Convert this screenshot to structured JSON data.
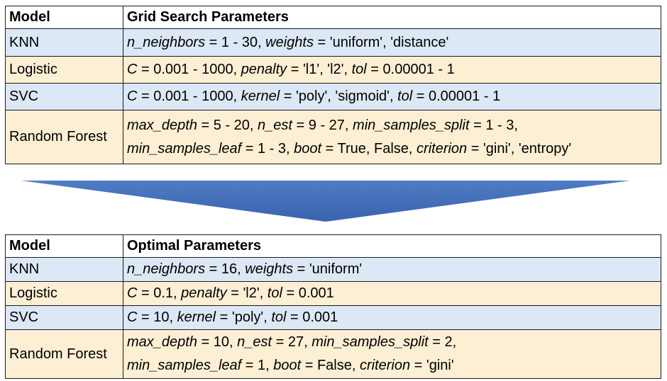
{
  "grid_table": {
    "headers": [
      "Model",
      "Grid Search Parameters"
    ],
    "rows": [
      {
        "model": "KNN",
        "lines": [
          [
            {
              "name": "n_neighbors",
              "value": " = 1 - 30, "
            },
            {
              "name": "weights",
              "value": " = 'uniform', 'distance'"
            }
          ]
        ]
      },
      {
        "model": "Logistic",
        "lines": [
          [
            {
              "name": "C",
              "value": " = 0.001 - 1000, "
            },
            {
              "name": "penalty",
              "value": " = 'l1', 'l2', "
            },
            {
              "name": "tol",
              "value": " = 0.00001 - 1"
            }
          ]
        ]
      },
      {
        "model": "SVC",
        "lines": [
          [
            {
              "name": "C",
              "value": " = 0.001 - 1000, "
            },
            {
              "name": "kernel",
              "value": " = 'poly', 'sigmoid', "
            },
            {
              "name": "tol",
              "value": " = 0.00001 - 1"
            }
          ]
        ]
      },
      {
        "model": "Random Forest",
        "lines": [
          [
            {
              "name": "max_depth",
              "value": " = 5 - 20, "
            },
            {
              "name": "n_est",
              "value": " = 9 - 27, "
            },
            {
              "name": "min_samples_split",
              "value": " = 1 - 3,"
            }
          ],
          [
            {
              "name": "min_samples_leaf",
              "value": " = 1 - 3, "
            },
            {
              "name": "boot",
              "value": " = True, False, "
            },
            {
              "name": "criterion",
              "value": " = 'gini', 'entropy'"
            }
          ]
        ]
      }
    ]
  },
  "optimal_table": {
    "headers": [
      "Model",
      "Optimal Parameters"
    ],
    "rows": [
      {
        "model": "KNN",
        "lines": [
          [
            {
              "name": "n_neighbors",
              "value": " = 16, "
            },
            {
              "name": "weights",
              "value": " = 'uniform'"
            }
          ]
        ]
      },
      {
        "model": "Logistic",
        "lines": [
          [
            {
              "name": "C",
              "value": " = 0.1, "
            },
            {
              "name": "penalty",
              "value": " = 'l2', "
            },
            {
              "name": "tol",
              "value": " = 0.001"
            }
          ]
        ]
      },
      {
        "model": "SVC",
        "lines": [
          [
            {
              "name": "C",
              "value": " = 10, "
            },
            {
              "name": "kernel",
              "value": " = 'poly', "
            },
            {
              "name": "tol",
              "value": " = 0.001"
            }
          ]
        ]
      },
      {
        "model": "Random Forest",
        "lines": [
          [
            {
              "name": "max_depth",
              "value": " = 10, "
            },
            {
              "name": "n_est",
              "value": " = 27, "
            },
            {
              "name": "min_samples_split",
              "value": " = 2,"
            }
          ],
          [
            {
              "name": "min_samples_leaf",
              "value": " = 1, "
            },
            {
              "name": "boot",
              "value": " = False, "
            },
            {
              "name": "criterion",
              "value": " = 'gini'"
            }
          ]
        ]
      }
    ]
  },
  "colors": {
    "row_blue": "#dce8f5",
    "row_tan": "#fcefd4",
    "arrow_top": "#4e7cc4",
    "arrow_bottom": "#3a63ad"
  }
}
